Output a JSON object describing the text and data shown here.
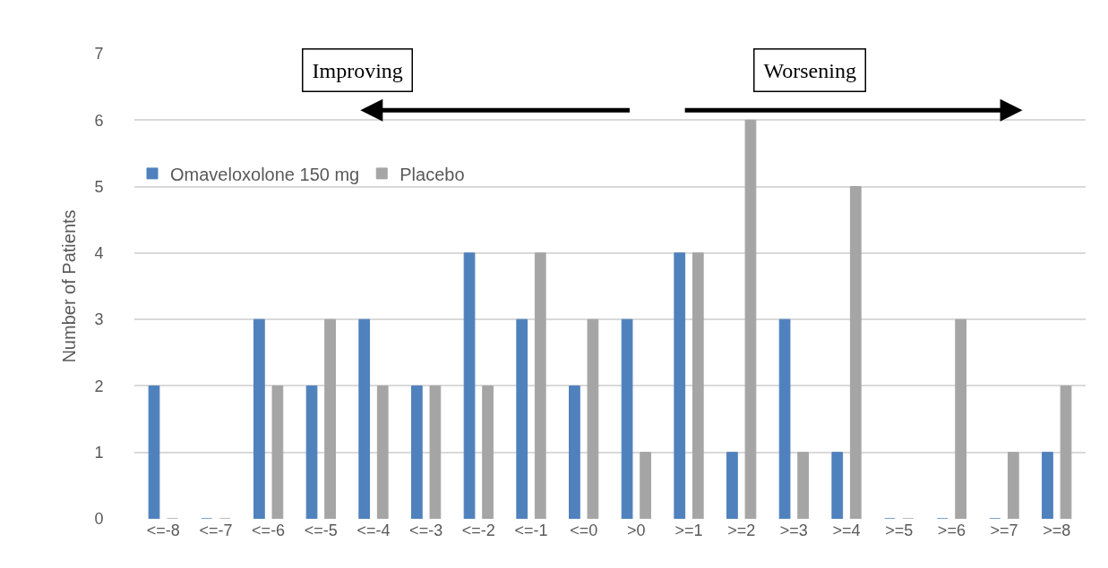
{
  "chart_data": {
    "type": "bar",
    "ylabel": "Number of Patients",
    "categories": [
      "<=-8",
      "<=-7",
      "<=-6",
      "<=-5",
      "<=-4",
      "<=-3",
      "<=-2",
      "<=-1",
      "<=0",
      ">0",
      ">=1",
      ">=2",
      ">=3",
      ">=4",
      ">=5",
      ">=6",
      ">=7",
      ">=8"
    ],
    "series": [
      {
        "name": "Omaveloxolone 150 mg",
        "color": "#4f81bd",
        "values": [
          2,
          0,
          3,
          2,
          3,
          2,
          4,
          3,
          2,
          3,
          4,
          1,
          3,
          1,
          0,
          0,
          0,
          1
        ]
      },
      {
        "name": "Placebo",
        "color": "#a5a5a5",
        "values": [
          0,
          0,
          2,
          3,
          2,
          2,
          2,
          4,
          3,
          1,
          4,
          6,
          1,
          5,
          0,
          3,
          1,
          2
        ]
      }
    ],
    "ylim": [
      0,
      7
    ],
    "yticks": [
      0,
      1,
      2,
      3,
      4,
      5,
      6,
      7
    ],
    "grid": "y",
    "legend": "top left",
    "annotations": [
      "Improving",
      "Worsening"
    ]
  }
}
